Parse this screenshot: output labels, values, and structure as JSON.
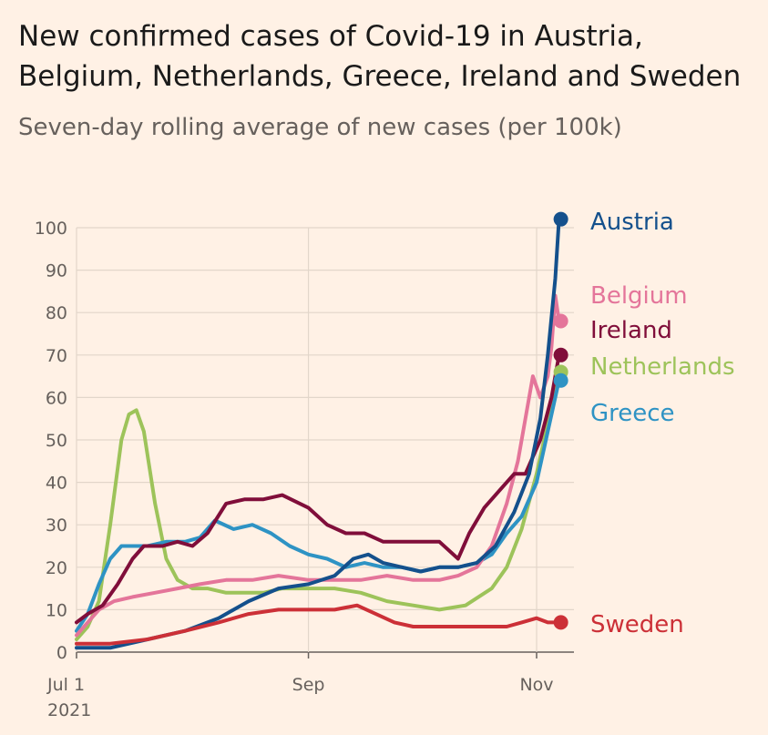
{
  "title": "New confirmed cases of Covid-19 in Austria, Belgium, Netherlands, Greece, Ireland and Sweden",
  "subtitle": "Seven-day rolling average of new cases (per 100k)",
  "chart_data": {
    "type": "line",
    "title": "New confirmed cases of Covid-19 in Austria, Belgium, Netherlands, Greece, Ireland and Sweden",
    "subtitle": "Seven-day rolling average of new cases (per 100k)",
    "xlabel": "",
    "ylabel": "",
    "x_range": [
      "2021-07-01",
      "2021-11-08"
    ],
    "ylim": [
      0,
      100
    ],
    "y_ticks": [
      0,
      10,
      20,
      30,
      40,
      50,
      60,
      70,
      80,
      90,
      100
    ],
    "x_ticks": [
      {
        "date": "2021-07-01",
        "label": "Jul 1",
        "sublabel": "2021"
      },
      {
        "date": "2021-09-01",
        "label": "Sep",
        "sublabel": ""
      },
      {
        "date": "2021-11-01",
        "label": "Nov",
        "sublabel": ""
      }
    ],
    "grid": true,
    "legend": "labels at line ends (right)",
    "series": [
      {
        "name": "Netherlands",
        "color": "#9dc35a",
        "points": [
          [
            "2021-07-01",
            3
          ],
          [
            "2021-07-04",
            6
          ],
          [
            "2021-07-07",
            12
          ],
          [
            "2021-07-10",
            30
          ],
          [
            "2021-07-13",
            50
          ],
          [
            "2021-07-15",
            56
          ],
          [
            "2021-07-17",
            57
          ],
          [
            "2021-07-19",
            52
          ],
          [
            "2021-07-22",
            35
          ],
          [
            "2021-07-25",
            22
          ],
          [
            "2021-07-28",
            17
          ],
          [
            "2021-08-01",
            15
          ],
          [
            "2021-08-05",
            15
          ],
          [
            "2021-08-10",
            14
          ],
          [
            "2021-08-15",
            14
          ],
          [
            "2021-08-20",
            14
          ],
          [
            "2021-08-25",
            15
          ],
          [
            "2021-09-01",
            15
          ],
          [
            "2021-09-08",
            15
          ],
          [
            "2021-09-15",
            14
          ],
          [
            "2021-09-22",
            12
          ],
          [
            "2021-09-29",
            11
          ],
          [
            "2021-10-06",
            10
          ],
          [
            "2021-10-13",
            11
          ],
          [
            "2021-10-20",
            15
          ],
          [
            "2021-10-24",
            20
          ],
          [
            "2021-10-28",
            29
          ],
          [
            "2021-11-01",
            42
          ],
          [
            "2021-11-04",
            54
          ],
          [
            "2021-11-07",
            66
          ]
        ]
      },
      {
        "name": "Greece",
        "color": "#2e93c4",
        "points": [
          [
            "2021-07-01",
            5
          ],
          [
            "2021-07-04",
            9
          ],
          [
            "2021-07-07",
            16
          ],
          [
            "2021-07-10",
            22
          ],
          [
            "2021-07-13",
            25
          ],
          [
            "2021-07-16",
            25
          ],
          [
            "2021-07-20",
            25
          ],
          [
            "2021-07-25",
            26
          ],
          [
            "2021-07-30",
            26
          ],
          [
            "2021-08-03",
            27
          ],
          [
            "2021-08-07",
            31
          ],
          [
            "2021-08-12",
            29
          ],
          [
            "2021-08-17",
            30
          ],
          [
            "2021-08-22",
            28
          ],
          [
            "2021-08-27",
            25
          ],
          [
            "2021-09-01",
            23
          ],
          [
            "2021-09-06",
            22
          ],
          [
            "2021-09-11",
            20
          ],
          [
            "2021-09-16",
            21
          ],
          [
            "2021-09-21",
            20
          ],
          [
            "2021-09-26",
            20
          ],
          [
            "2021-10-01",
            19
          ],
          [
            "2021-10-06",
            20
          ],
          [
            "2021-10-11",
            20
          ],
          [
            "2021-10-16",
            21
          ],
          [
            "2021-10-20",
            23
          ],
          [
            "2021-10-24",
            28
          ],
          [
            "2021-10-28",
            32
          ],
          [
            "2021-11-01",
            40
          ],
          [
            "2021-11-04",
            52
          ],
          [
            "2021-11-07",
            64
          ]
        ]
      },
      {
        "name": "Belgium",
        "color": "#e4759a",
        "points": [
          [
            "2021-07-01",
            4
          ],
          [
            "2021-07-04",
            7
          ],
          [
            "2021-07-07",
            10
          ],
          [
            "2021-07-11",
            12
          ],
          [
            "2021-07-16",
            13
          ],
          [
            "2021-07-22",
            14
          ],
          [
            "2021-07-28",
            15
          ],
          [
            "2021-08-03",
            16
          ],
          [
            "2021-08-10",
            17
          ],
          [
            "2021-08-17",
            17
          ],
          [
            "2021-08-24",
            18
          ],
          [
            "2021-09-01",
            17
          ],
          [
            "2021-09-08",
            17
          ],
          [
            "2021-09-15",
            17
          ],
          [
            "2021-09-22",
            18
          ],
          [
            "2021-09-29",
            17
          ],
          [
            "2021-10-06",
            17
          ],
          [
            "2021-10-11",
            18
          ],
          [
            "2021-10-16",
            20
          ],
          [
            "2021-10-20",
            25
          ],
          [
            "2021-10-24",
            35
          ],
          [
            "2021-10-27",
            45
          ],
          [
            "2021-10-29",
            55
          ],
          [
            "2021-10-31",
            65
          ],
          [
            "2021-11-02",
            60
          ],
          [
            "2021-11-04",
            65
          ],
          [
            "2021-11-05",
            72
          ],
          [
            "2021-11-06",
            84
          ],
          [
            "2021-11-07",
            78
          ]
        ]
      },
      {
        "name": "Ireland",
        "color": "#800e3a",
        "points": [
          [
            "2021-07-01",
            7
          ],
          [
            "2021-07-04",
            9
          ],
          [
            "2021-07-08",
            11
          ],
          [
            "2021-07-12",
            16
          ],
          [
            "2021-07-16",
            22
          ],
          [
            "2021-07-19",
            25
          ],
          [
            "2021-07-24",
            25
          ],
          [
            "2021-07-28",
            26
          ],
          [
            "2021-08-01",
            25
          ],
          [
            "2021-08-05",
            28
          ],
          [
            "2021-08-10",
            35
          ],
          [
            "2021-08-15",
            36
          ],
          [
            "2021-08-20",
            36
          ],
          [
            "2021-08-25",
            37
          ],
          [
            "2021-09-01",
            34
          ],
          [
            "2021-09-06",
            30
          ],
          [
            "2021-09-11",
            28
          ],
          [
            "2021-09-16",
            28
          ],
          [
            "2021-09-21",
            26
          ],
          [
            "2021-09-26",
            26
          ],
          [
            "2021-10-01",
            26
          ],
          [
            "2021-10-06",
            26
          ],
          [
            "2021-10-11",
            22
          ],
          [
            "2021-10-14",
            28
          ],
          [
            "2021-10-18",
            34
          ],
          [
            "2021-10-22",
            38
          ],
          [
            "2021-10-26",
            42
          ],
          [
            "2021-10-29",
            42
          ],
          [
            "2021-11-02",
            50
          ],
          [
            "2021-11-05",
            60
          ],
          [
            "2021-11-07",
            70
          ]
        ]
      },
      {
        "name": "Austria",
        "color": "#14508c",
        "points": [
          [
            "2021-07-01",
            1
          ],
          [
            "2021-07-10",
            1
          ],
          [
            "2021-07-20",
            3
          ],
          [
            "2021-07-30",
            5
          ],
          [
            "2021-08-08",
            8
          ],
          [
            "2021-08-16",
            12
          ],
          [
            "2021-08-24",
            15
          ],
          [
            "2021-09-01",
            16
          ],
          [
            "2021-09-08",
            18
          ],
          [
            "2021-09-13",
            22
          ],
          [
            "2021-09-17",
            23
          ],
          [
            "2021-09-21",
            21
          ],
          [
            "2021-09-26",
            20
          ],
          [
            "2021-10-01",
            19
          ],
          [
            "2021-10-06",
            20
          ],
          [
            "2021-10-11",
            20
          ],
          [
            "2021-10-16",
            21
          ],
          [
            "2021-10-21",
            25
          ],
          [
            "2021-10-26",
            33
          ],
          [
            "2021-10-30",
            42
          ],
          [
            "2021-11-02",
            55
          ],
          [
            "2021-11-04",
            70
          ],
          [
            "2021-11-06",
            88
          ],
          [
            "2021-11-07",
            102
          ]
        ]
      },
      {
        "name": "Sweden",
        "color": "#cc3037",
        "points": [
          [
            "2021-07-01",
            2
          ],
          [
            "2021-07-10",
            2
          ],
          [
            "2021-07-20",
            3
          ],
          [
            "2021-07-30",
            5
          ],
          [
            "2021-08-08",
            7
          ],
          [
            "2021-08-16",
            9
          ],
          [
            "2021-08-24",
            10
          ],
          [
            "2021-09-01",
            10
          ],
          [
            "2021-09-08",
            10
          ],
          [
            "2021-09-14",
            11
          ],
          [
            "2021-09-19",
            9
          ],
          [
            "2021-09-24",
            7
          ],
          [
            "2021-09-29",
            6
          ],
          [
            "2021-10-04",
            6
          ],
          [
            "2021-10-09",
            6
          ],
          [
            "2021-10-14",
            6
          ],
          [
            "2021-10-19",
            6
          ],
          [
            "2021-10-24",
            6
          ],
          [
            "2021-10-28",
            7
          ],
          [
            "2021-11-01",
            8
          ],
          [
            "2021-11-04",
            7
          ],
          [
            "2021-11-07",
            7
          ]
        ]
      }
    ]
  }
}
